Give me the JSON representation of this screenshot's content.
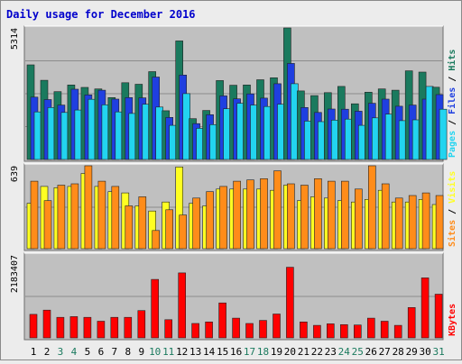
{
  "chart_data": [
    {
      "type": "bar",
      "title": "Daily usage for December 2016",
      "ymax_label": "5314",
      "legend": [
        "Pages",
        "Files",
        "Hits"
      ],
      "categories": [
        "1",
        "2",
        "3",
        "4",
        "5",
        "6",
        "7",
        "8",
        "9",
        "10",
        "11",
        "12",
        "13",
        "14",
        "15",
        "16",
        "17",
        "18",
        "19",
        "20",
        "21",
        "22",
        "23",
        "24",
        "25",
        "26",
        "27",
        "28",
        "29",
        "30",
        "31"
      ],
      "series": [
        {
          "name": "Hits",
          "color": "#1a7a5e",
          "values": [
            3820,
            3200,
            2740,
            3010,
            2910,
            2850,
            2500,
            3100,
            3040,
            3550,
            1970,
            4790,
            1650,
            1980,
            3190,
            3000,
            3010,
            3220,
            3300,
            5380,
            2770,
            2580,
            2700,
            2950,
            2250,
            2720,
            2850,
            2800,
            3580,
            3530,
            2920
          ]
        },
        {
          "name": "Files",
          "color": "#1f3fe0",
          "values": [
            2520,
            2420,
            2200,
            2840,
            2610,
            2800,
            2440,
            2500,
            2490,
            3330,
            1700,
            3410,
            1450,
            1810,
            2570,
            2450,
            2650,
            2480,
            3060,
            3880,
            2100,
            1900,
            2040,
            2030,
            1950,
            2270,
            2440,
            2150,
            2200,
            2440,
            2620
          ]
        },
        {
          "name": "Pages",
          "color": "#22d4f0",
          "values": [
            1920,
            2100,
            1900,
            2000,
            2430,
            2210,
            1920,
            1860,
            2230,
            2120,
            1380,
            2660,
            1260,
            1410,
            2050,
            2270,
            2200,
            2140,
            2230,
            3060,
            1550,
            1530,
            1590,
            1630,
            1380,
            1680,
            1830,
            1570,
            1600,
            2950,
            2030
          ]
        }
      ]
    },
    {
      "type": "bar",
      "ymax_label": "639",
      "legend": [
        "Sites",
        "Visits"
      ],
      "categories": [
        "1",
        "2",
        "3",
        "4",
        "5",
        "6",
        "7",
        "8",
        "9",
        "10",
        "11",
        "12",
        "13",
        "14",
        "15",
        "16",
        "17",
        "18",
        "19",
        "20",
        "21",
        "22",
        "23",
        "24",
        "25",
        "26",
        "27",
        "28",
        "29",
        "30",
        "31"
      ],
      "series": [
        {
          "name": "Visits",
          "color": "#ffff22",
          "values": [
            350,
            480,
            470,
            480,
            580,
            480,
            440,
            430,
            330,
            290,
            360,
            630,
            350,
            330,
            460,
            460,
            460,
            460,
            450,
            490,
            370,
            400,
            390,
            370,
            360,
            380,
            450,
            360,
            360,
            380,
            340
          ]
        },
        {
          "name": "Sites",
          "color": "#ff8c1a",
          "values": [
            520,
            370,
            490,
            500,
            650,
            520,
            480,
            330,
            400,
            140,
            300,
            260,
            390,
            440,
            480,
            520,
            530,
            540,
            600,
            500,
            490,
            540,
            520,
            520,
            460,
            670,
            500,
            390,
            410,
            430,
            410
          ]
        }
      ]
    },
    {
      "type": "bar",
      "ymax_label": "2183407",
      "legend": [
        "KBytes"
      ],
      "categories": [
        "1",
        "2",
        "3",
        "4",
        "5",
        "6",
        "7",
        "8",
        "9",
        "10",
        "11",
        "12",
        "13",
        "14",
        "15",
        "16",
        "17",
        "18",
        "19",
        "20",
        "21",
        "22",
        "23",
        "24",
        "25",
        "26",
        "27",
        "28",
        "29",
        "30",
        "31"
      ],
      "series": [
        {
          "name": "KBytes",
          "color": "#ff0000",
          "values": [
            620000,
            730000,
            540000,
            560000,
            540000,
            440000,
            540000,
            540000,
            720000,
            1540000,
            480000,
            1710000,
            380000,
            420000,
            920000,
            520000,
            380000,
            460000,
            630000,
            1860000,
            420000,
            330000,
            370000,
            350000,
            340000,
            520000,
            440000,
            330000,
            800000,
            1580000,
            1150000
          ]
        }
      ]
    }
  ],
  "colors": {
    "title": "#0000cc",
    "ticks_weekday": "#000000",
    "ticks_weekend": "#1a7a5e",
    "panel_bg": "#c0c0c0",
    "page_bg": "#ececec",
    "legend_sep": "#000000"
  },
  "weekend_days": [
    "3",
    "4",
    "10",
    "11",
    "17",
    "18",
    "24",
    "25",
    "31"
  ]
}
